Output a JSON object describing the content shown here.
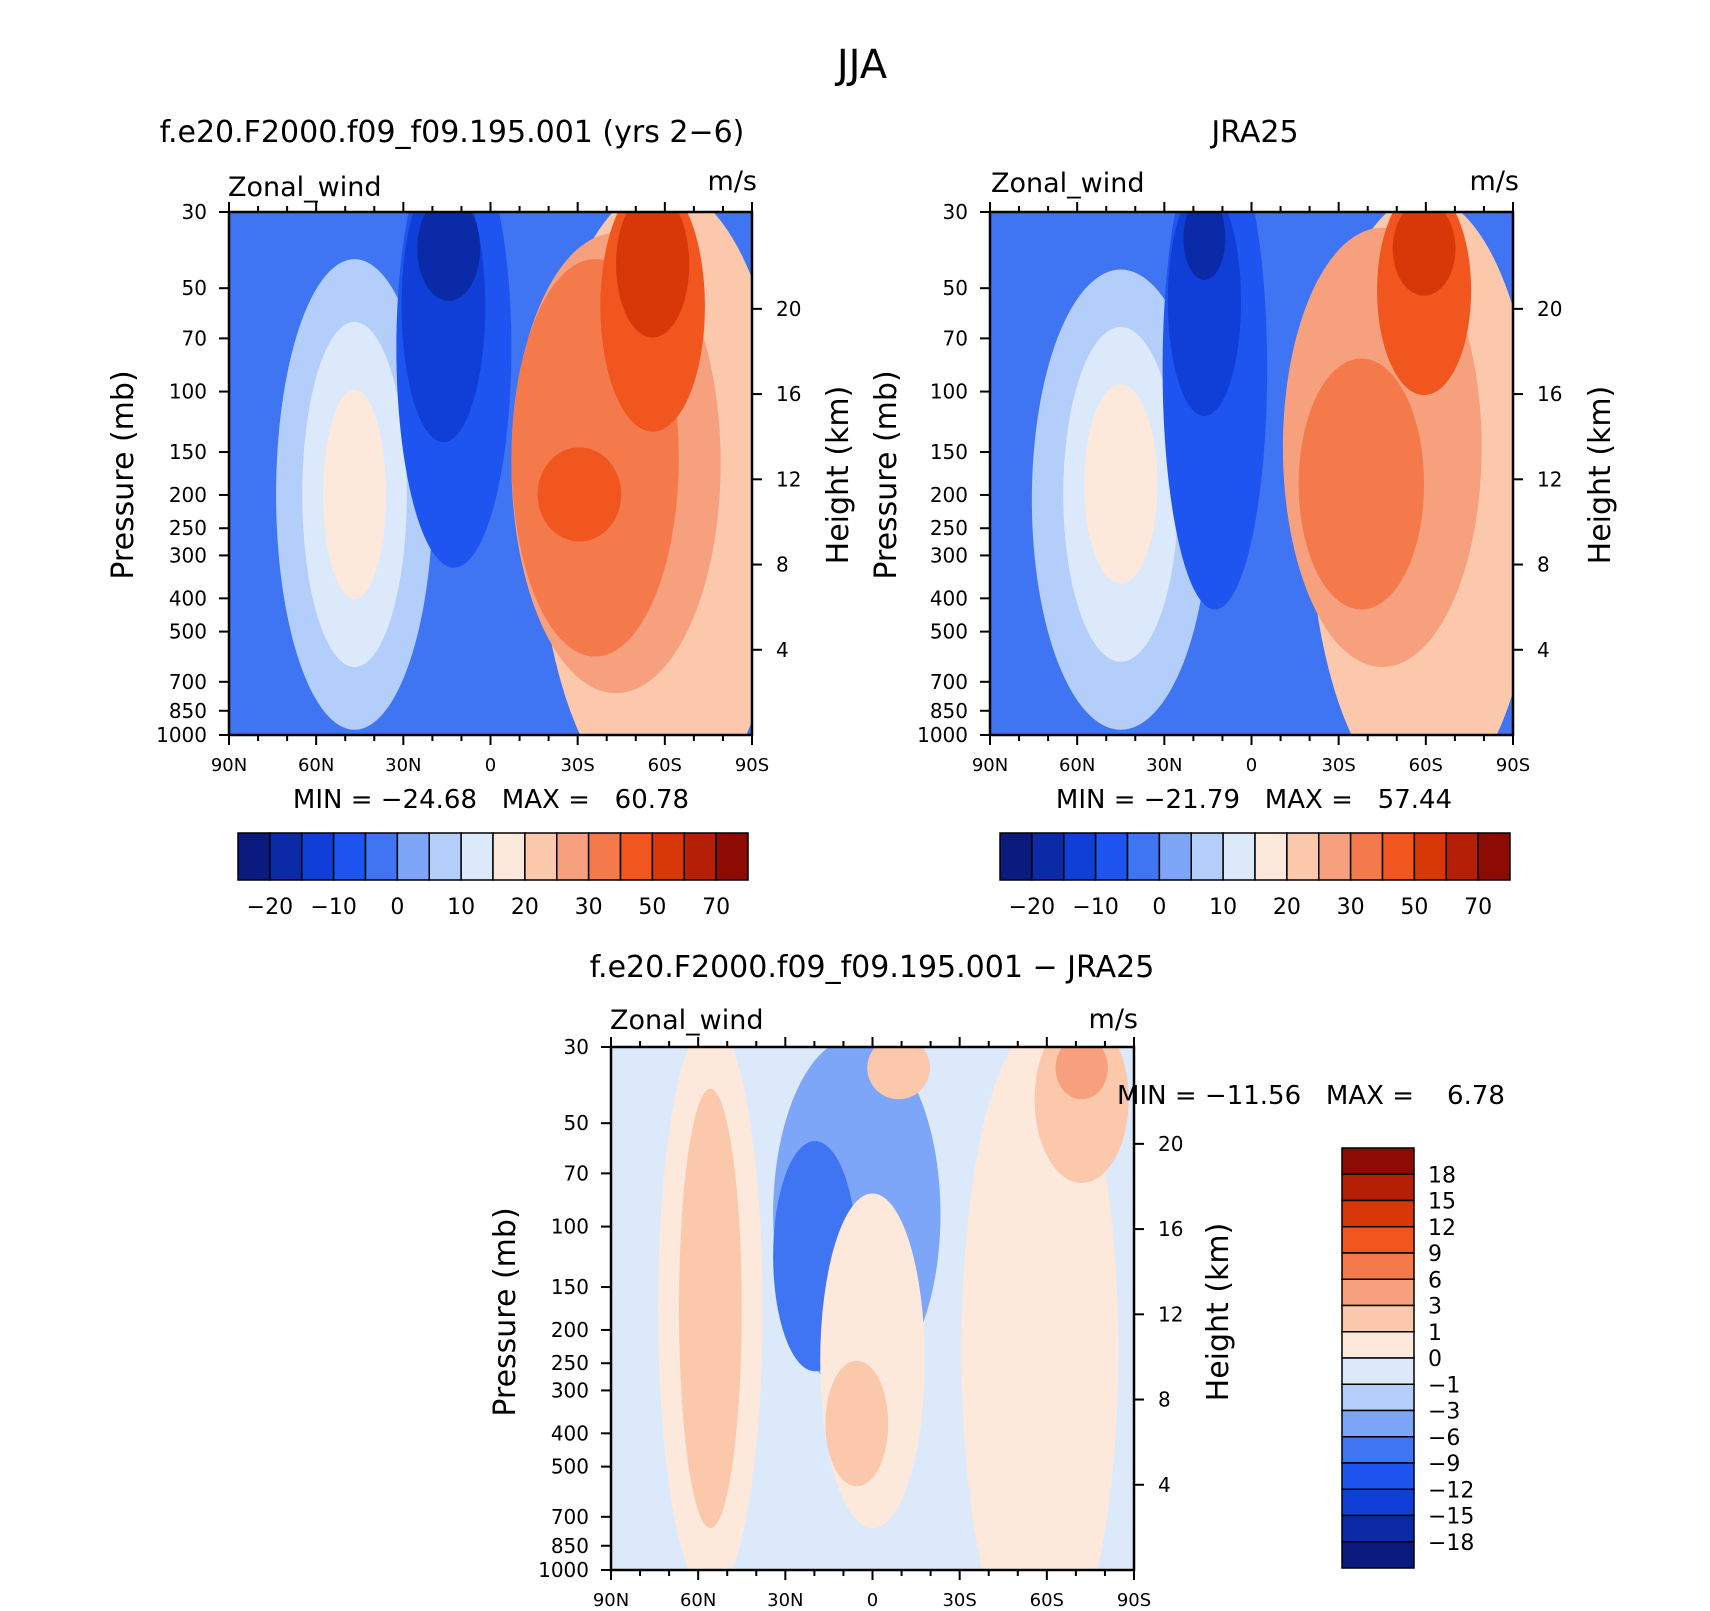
{
  "figure": {
    "title": "JJA",
    "variable_label": "Zonal_wind",
    "units": "m/s"
  },
  "colors": {
    "main_scale": [
      "#0a1a7e",
      "#0b2aa8",
      "#0f3fd6",
      "#1e55f0",
      "#3f74f2",
      "#7ea6f8",
      "#b3cefa",
      "#dce9fb",
      "#fde9dc",
      "#fbc8ac",
      "#f6a07e",
      "#f47a4c",
      "#f1561f",
      "#d83808",
      "#b41f06",
      "#8e0b04"
    ],
    "diff_scale": [
      "#0a1a7e",
      "#0b2aa8",
      "#0f3fd6",
      "#1e55f0",
      "#3f74f2",
      "#7ea6f8",
      "#b3cefa",
      "#dce9fb",
      "#fde9dc",
      "#fbc8ac",
      "#f6a07e",
      "#f47a4c",
      "#f1561f",
      "#d83808",
      "#b41f06",
      "#8e0b04"
    ]
  },
  "chart_data": [
    {
      "type": "heatmap",
      "panel": "model",
      "title": "f.e20.F2000.f09_f09.195.001 (yrs 2-6)",
      "subtitle_left": "Zonal_wind",
      "subtitle_right": "m/s",
      "x_ticks": [
        "90N",
        "60N",
        "30N",
        "0",
        "30S",
        "60S",
        "90S"
      ],
      "y_ticks_left": [
        "30",
        "50",
        "70",
        "100",
        "150",
        "200",
        "250",
        "300",
        "400",
        "500",
        "700",
        "850",
        "1000"
      ],
      "y_ticks_right": [
        "20",
        "16",
        "12",
        "8",
        "4"
      ],
      "ylabel": "Pressure (mb)",
      "ylabel_right": "Height (km)",
      "stats_text": "MIN = -24.68   MAX =   60.78",
      "colorbar_labels": [
        "-20",
        "-10",
        "0",
        "10",
        "20",
        "30",
        "50",
        "70"
      ],
      "features": [
        {
          "lat": -28,
          "p": 200,
          "value": 56,
          "kind": "max"
        },
        {
          "lat": -57,
          "p": 40,
          "value": 48,
          "kind": "max"
        },
        {
          "lat": 46,
          "p": 200,
          "value": 17,
          "kind": "local_max"
        },
        {
          "lat": 20,
          "p": 30,
          "value": -24,
          "kind": "min"
        }
      ]
    },
    {
      "type": "heatmap",
      "panel": "obs",
      "title": "JRA25",
      "subtitle_left": "Zonal_wind",
      "subtitle_right": "m/s",
      "x_ticks": [
        "90N",
        "60N",
        "30N",
        "0",
        "30S",
        "60S",
        "90S"
      ],
      "y_ticks_left": [
        "30",
        "50",
        "70",
        "100",
        "150",
        "200",
        "250",
        "300",
        "400",
        "500",
        "700",
        "850",
        "1000"
      ],
      "y_ticks_right": [
        "20",
        "16",
        "12",
        "8",
        "4"
      ],
      "ylabel": "Pressure (mb)",
      "ylabel_right": "Height (km)",
      "stats_text": "MIN = -21.79   MAX =   57.44",
      "colorbar_labels": [
        "-20",
        "-10",
        "0",
        "10",
        "20",
        "30",
        "50",
        "70"
      ],
      "features": [
        {
          "lat": -30,
          "p": 200,
          "value": 55,
          "kind": "max"
        },
        {
          "lat": -60,
          "p": 40,
          "value": 50,
          "kind": "max"
        },
        {
          "lat": 44,
          "p": 200,
          "value": 17,
          "kind": "local_max"
        },
        {
          "lat": 16,
          "p": 30,
          "value": -21,
          "kind": "min"
        }
      ]
    },
    {
      "type": "heatmap",
      "panel": "difference",
      "title": "f.e20.F2000.f09_f09.195.001 - JRA25",
      "subtitle_left": "Zonal_wind",
      "subtitle_right": "m/s",
      "x_ticks": [
        "90N",
        "60N",
        "30N",
        "0",
        "30S",
        "60S",
        "90S"
      ],
      "y_ticks_left": [
        "30",
        "50",
        "70",
        "100",
        "150",
        "200",
        "250",
        "300",
        "400",
        "500",
        "700",
        "850",
        "1000"
      ],
      "y_ticks_right": [
        "20",
        "16",
        "12",
        "8",
        "4"
      ],
      "ylabel": "Pressure (mb)",
      "ylabel_right": "Height (km)",
      "stats_text": "MIN = -11.56   MAX =    6.78",
      "colorbar_labels": [
        "18",
        "15",
        "12",
        "9",
        "6",
        "3",
        "1",
        "0",
        "-1",
        "-3",
        "-6",
        "-9",
        "-12",
        "-15",
        "-18"
      ]
    }
  ]
}
